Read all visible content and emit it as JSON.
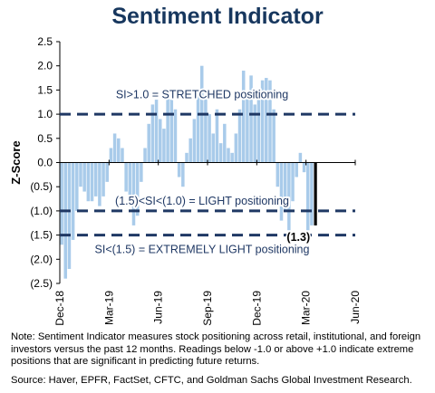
{
  "chart_data": {
    "type": "bar",
    "title": "Sentiment Indicator",
    "ylabel": "Z-Score",
    "xlabel": "",
    "ylim": [
      -2.5,
      2.5
    ],
    "yticks": [
      {
        "value": 2.5,
        "label": "2.5"
      },
      {
        "value": 2.0,
        "label": "2.0"
      },
      {
        "value": 1.5,
        "label": "1.5"
      },
      {
        "value": 1.0,
        "label": "1.0"
      },
      {
        "value": 0.5,
        "label": "0.5"
      },
      {
        "value": 0.0,
        "label": "0.0"
      },
      {
        "value": -0.5,
        "label": "(0.5)"
      },
      {
        "value": -1.0,
        "label": "(1.0)"
      },
      {
        "value": -1.5,
        "label": "(1.5)"
      },
      {
        "value": -2.0,
        "label": "(2.0)"
      },
      {
        "value": -2.5,
        "label": "(2.5)"
      }
    ],
    "xticks": [
      {
        "label": "Dec-18",
        "week": 0
      },
      {
        "label": "Mar-19",
        "week": 13
      },
      {
        "label": "Jun-19",
        "week": 26
      },
      {
        "label": "Sep-19",
        "week": 39
      },
      {
        "label": "Dec-19",
        "week": 52
      },
      {
        "label": "Mar-20",
        "week": 65
      },
      {
        "label": "Jun-20",
        "week": 78
      }
    ],
    "x_range_weeks": [
      0,
      78
    ],
    "grid": false,
    "bar_color": "#a9cbea",
    "current_bar_color": "#000000",
    "line_color": "#1f3864",
    "values": [
      -1.7,
      -2.4,
      -2.2,
      -1.6,
      -1.0,
      -0.5,
      -0.6,
      -0.8,
      -0.8,
      -0.7,
      -0.9,
      -0.7,
      -0.4,
      0.3,
      0.6,
      0.5,
      0.3,
      -0.6,
      -0.9,
      -1.3,
      -1.1,
      -0.4,
      0.3,
      0.8,
      1.2,
      1.3,
      0.9,
      0.7,
      1.5,
      1.3,
      1.1,
      -0.3,
      -0.5,
      0.2,
      0.5,
      0.9,
      1.5,
      2.0,
      1.4,
      1.0,
      0.6,
      1.1,
      0.4,
      0.8,
      0.3,
      0.2,
      0.6,
      1.1,
      1.9,
      1.4,
      1.8,
      1.2,
      1.5,
      1.7,
      1.75,
      1.7,
      1.1,
      -0.5,
      -1.2,
      -1.0,
      -1.4,
      -0.8,
      -0.3,
      0.2,
      -0.2,
      -1.4,
      -1.3
    ],
    "current_value": -1.3,
    "current_label": "(1.3)",
    "reference_lines": [
      {
        "value": 1.0,
        "label": "SI>1.0 = STRETCHED positioning",
        "label_y": 1.4
      },
      {
        "value": -1.0,
        "label": "(1.5)<SI<(1.0) = LIGHT positioning",
        "label_y": -0.8
      },
      {
        "value": -1.5,
        "label": "SI<(1.5) = EXTREMELY LIGHT positioning",
        "label_y": -1.8
      }
    ]
  },
  "note": "Note: Sentiment Indicator measures stock positioning across retail, institutional, and foreign investors versus the past 12 months. Readings below -1.0 or above +1.0 indicate extreme positions that are significant in predicting future returns.",
  "source": "Source: Haver, EPFR, FactSet, CFTC, and Goldman Sachs Global Investment Research."
}
